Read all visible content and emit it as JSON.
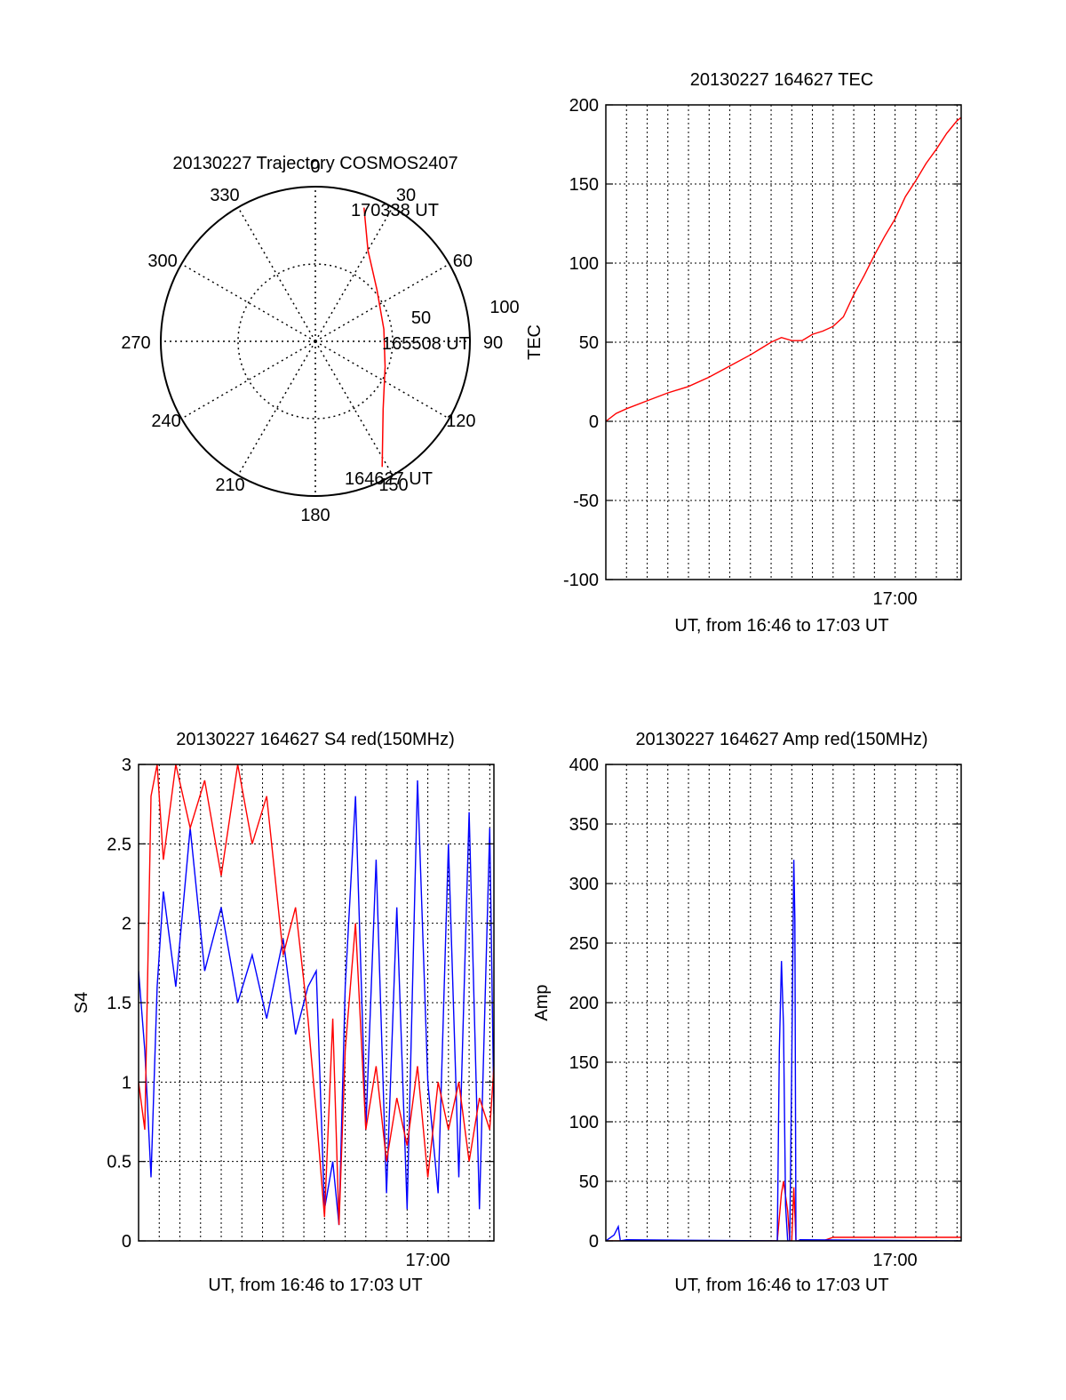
{
  "colors": {
    "red": "#ff0000",
    "blue": "#0000ff",
    "axis": "#000000",
    "grid": "#000000"
  },
  "chart_data": [
    {
      "id": "trajectory",
      "type": "polar",
      "title": "20130227 Trajectory COSMOS2407",
      "azimuth_labels": [
        "0",
        "30",
        "60",
        "90",
        "120",
        "150",
        "180",
        "210",
        "240",
        "270",
        "300",
        "330"
      ],
      "radius_labels": [
        "50",
        "100"
      ],
      "rlim": [
        0,
        100
      ],
      "grid": true,
      "series": [
        {
          "color": "red",
          "points": [
            {
              "az": 20,
              "el_r": 92
            },
            {
              "az": 30,
              "el_r": 68
            },
            {
              "az": 50,
              "el_r": 52
            },
            {
              "az": 80,
              "el_r": 45
            },
            {
              "az": 110,
              "el_r": 48
            },
            {
              "az": 135,
              "el_r": 62
            },
            {
              "az": 152,
              "el_r": 92
            }
          ]
        }
      ],
      "annotations": [
        {
          "text": "170338 UT",
          "az": 20,
          "el_r": 92
        },
        {
          "text": "165508 UT",
          "az": 88,
          "el_r": 56
        },
        {
          "text": "164627 UT",
          "az": 152,
          "el_r": 92
        }
      ]
    },
    {
      "id": "tec",
      "type": "line",
      "title": "20130227 164627 TEC",
      "xlabel": "UT, from 16:46 to 17:03 UT",
      "ylabel": "TEC",
      "xlim": [
        0,
        17.2
      ],
      "ylim": [
        -100,
        200
      ],
      "ytick_labels": [
        "-100",
        "-50",
        "0",
        "50",
        "100",
        "150",
        "200"
      ],
      "yticks": [
        -100,
        -50,
        0,
        50,
        100,
        150,
        200
      ],
      "xtick_labels": [
        "17:00"
      ],
      "xticks": [
        14
      ],
      "grid": true,
      "series": [
        {
          "color": "red",
          "x": [
            0,
            0.5,
            1,
            2,
            3,
            4,
            5,
            6,
            7,
            7.5,
            8,
            8.5,
            9,
            9.5,
            10,
            10.5,
            11,
            11.5,
            12,
            12.5,
            13,
            13.5,
            14,
            14.5,
            15,
            15.5,
            16,
            16.5,
            17,
            17.2
          ],
          "y": [
            0,
            5,
            8,
            13,
            18,
            22,
            28,
            35,
            42,
            46,
            50,
            53,
            51,
            51,
            55,
            57,
            60,
            66,
            80,
            92,
            105,
            117,
            128,
            142,
            152,
            163,
            172,
            182,
            190,
            192
          ]
        }
      ]
    },
    {
      "id": "s4",
      "type": "line",
      "title": "20130227 164627 S4 red(150MHz)",
      "xlabel": "UT, from 16:46 to 17:03 UT",
      "ylabel": "S4",
      "xlim": [
        0,
        17.2
      ],
      "ylim": [
        0,
        3
      ],
      "ytick_labels": [
        "0",
        "0.5",
        "1",
        "1.5",
        "2",
        "2.5",
        "3"
      ],
      "yticks": [
        0,
        0.5,
        1,
        1.5,
        2,
        2.5,
        3
      ],
      "xtick_labels": [
        "17:00"
      ],
      "xticks": [
        14
      ],
      "grid": true,
      "series": [
        {
          "color": "blue",
          "x": [
            0,
            0.3,
            0.6,
            0.9,
            1.2,
            1.8,
            2.5,
            3.2,
            4,
            4.8,
            5.5,
            6.2,
            7,
            7.6,
            8.2,
            8.6,
            9,
            9.4,
            9.7,
            10,
            10.5,
            11,
            11.5,
            12,
            12.5,
            13,
            13.5,
            14,
            14.5,
            15,
            15.5,
            16,
            16.5,
            17,
            17.2
          ],
          "y": [
            1.7,
            1.2,
            0.4,
            1.6,
            2.2,
            1.6,
            2.6,
            1.7,
            2.1,
            1.5,
            1.8,
            1.4,
            1.9,
            1.3,
            1.6,
            1.7,
            0.2,
            0.5,
            0.1,
            1.6,
            2.8,
            0.7,
            2.4,
            0.3,
            2.1,
            0.2,
            2.9,
            1.0,
            0.3,
            2.5,
            0.4,
            2.7,
            0.2,
            2.6,
            0.8
          ]
        },
        {
          "color": "red",
          "x": [
            0,
            0.3,
            0.6,
            0.9,
            1.2,
            1.8,
            2.5,
            3.2,
            4,
            4.8,
            5.5,
            6.2,
            7,
            7.6,
            8.2,
            8.6,
            9,
            9.4,
            9.7,
            10,
            10.5,
            11,
            11.5,
            12,
            12.5,
            13,
            13.5,
            14,
            14.5,
            15,
            15.5,
            16,
            16.5,
            17,
            17.2
          ],
          "y": [
            1.0,
            0.7,
            2.8,
            3.0,
            2.4,
            3.0,
            2.6,
            2.9,
            2.3,
            3.0,
            2.5,
            2.8,
            1.8,
            2.1,
            1.4,
            0.8,
            0.15,
            1.4,
            0.1,
            1.2,
            2.0,
            0.7,
            1.1,
            0.5,
            0.9,
            0.6,
            1.1,
            0.4,
            1.0,
            0.7,
            1.0,
            0.5,
            0.9,
            0.7,
            1.1
          ]
        }
      ]
    },
    {
      "id": "amp",
      "type": "line",
      "title": "20130227 164627 Amp red(150MHz)",
      "xlabel": "UT, from 16:46 to 17:03 UT",
      "ylabel": "Amp",
      "xlim": [
        0,
        17.2
      ],
      "ylim": [
        0,
        400
      ],
      "ytick_labels": [
        "0",
        "50",
        "100",
        "150",
        "200",
        "250",
        "300",
        "350",
        "400"
      ],
      "yticks": [
        0,
        50,
        100,
        150,
        200,
        250,
        300,
        350,
        400
      ],
      "xtick_labels": [
        "17:00"
      ],
      "xticks": [
        14
      ],
      "grid": true,
      "series": [
        {
          "color": "red",
          "x": [
            0,
            8.2,
            8.3,
            8.5,
            8.6,
            8.8,
            8.9,
            9.0,
            9.1,
            9.2,
            10.5,
            11,
            17.2
          ],
          "y": [
            0,
            0,
            0,
            40,
            50,
            25,
            0,
            0,
            45,
            0,
            0,
            3,
            3
          ]
        },
        {
          "color": "blue",
          "x": [
            0,
            0.4,
            0.6,
            0.7,
            1.0,
            8.2,
            8.3,
            8.4,
            8.5,
            8.6,
            8.7,
            8.8,
            8.9,
            9.0,
            9.1,
            9.15,
            9.2,
            9.3,
            9.4,
            17.2
          ],
          "y": [
            0,
            5,
            12,
            0,
            1,
            0,
            0,
            160,
            235,
            180,
            30,
            0,
            0,
            150,
            320,
            270,
            0,
            0,
            1,
            0
          ]
        }
      ]
    }
  ]
}
